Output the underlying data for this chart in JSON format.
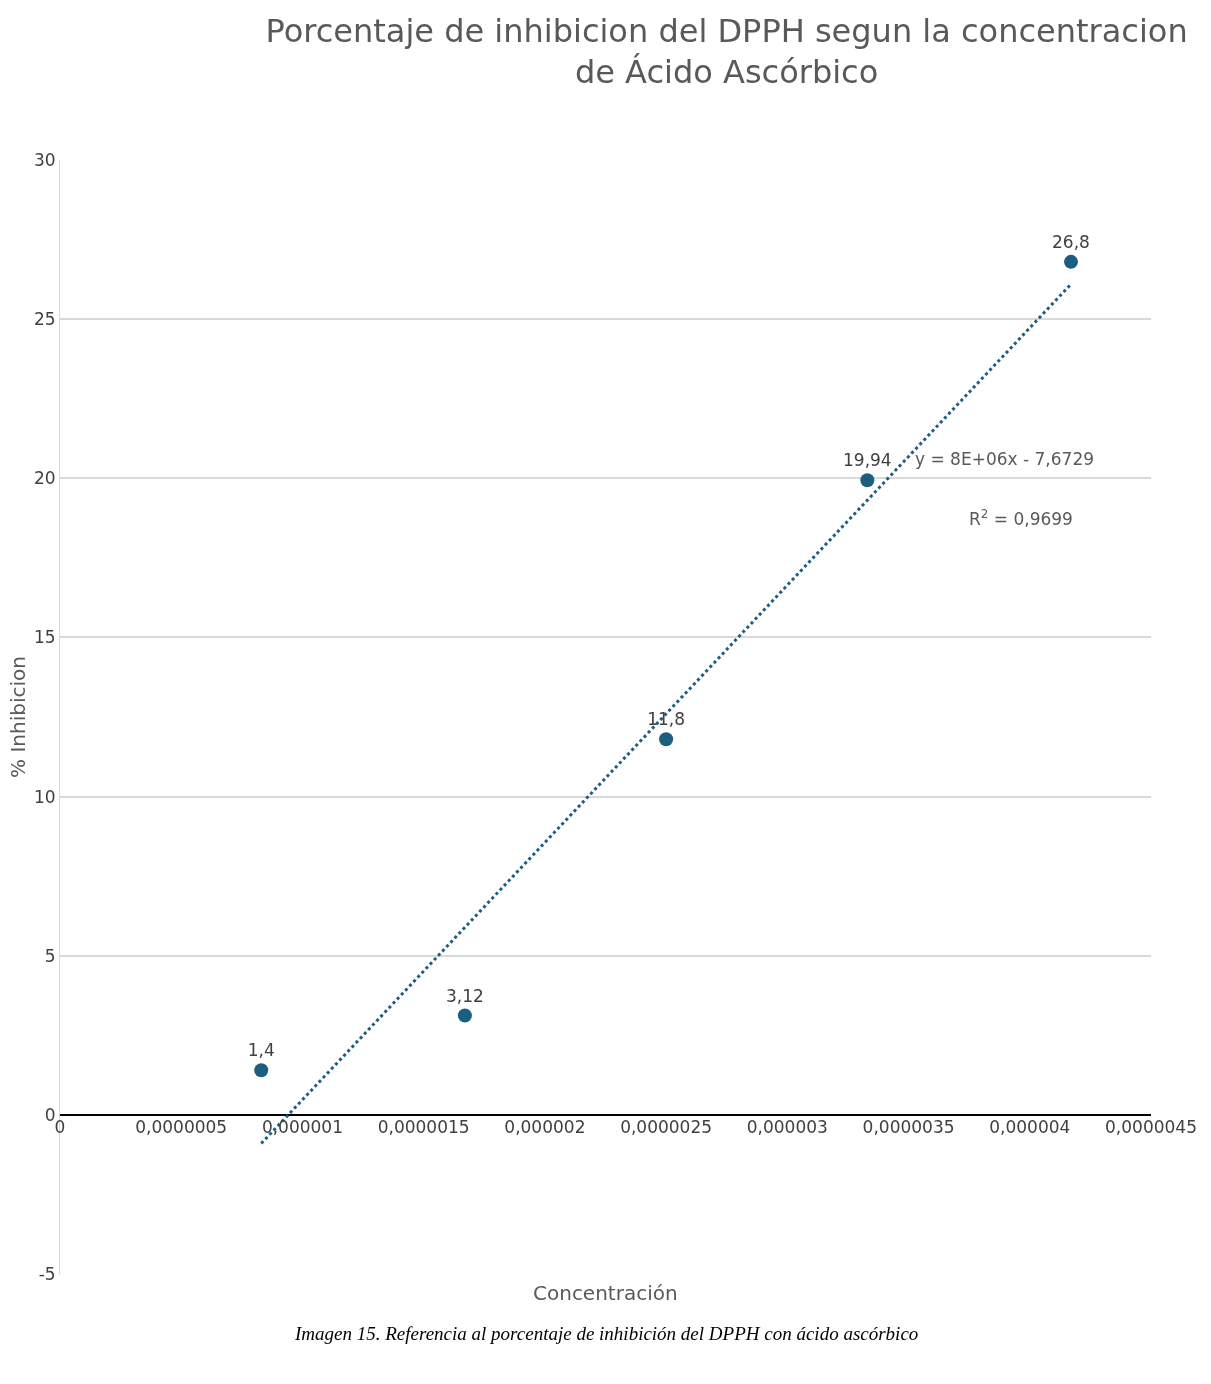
{
  "chart_data": {
    "type": "scatter",
    "title": "Porcentaje de inhibicion del DPPH segun la concentracion de Ácido Ascórbico",
    "xlabel": "Concentración",
    "ylabel": "% Inhibicion",
    "x": [
      8.3e-07,
      1.67e-06,
      2.5e-06,
      3.33e-06,
      4.17e-06
    ],
    "series": [
      {
        "color": "#1b5e80",
        "values": [
          1.4,
          3.12,
          11.8,
          19.94,
          26.8
        ],
        "value_labels": [
          "1,4",
          "3,12",
          "11,8",
          "19,94",
          "26,8"
        ],
        "marker": "circle"
      },
      {
        "type": "line",
        "color": "#1b5e80",
        "x": [
          8.3e-07,
          4.17e-06
        ],
        "values": [
          -0.9,
          26.1
        ],
        "line_style": "dotted",
        "marker": "none"
      }
    ],
    "xlim": [
      0,
      4.5e-06
    ],
    "xticks": [
      0,
      {
        "value": 5e-07,
        "label": "0,0000005"
      },
      {
        "value": 1e-06,
        "label": "0,000001"
      },
      {
        "value": 1.5e-06,
        "label": "0,0000015"
      },
      {
        "value": 2e-06,
        "label": "0,000002"
      },
      {
        "value": 2.5e-06,
        "label": "0,0000025"
      },
      {
        "value": 3e-06,
        "label": "0,000003"
      },
      {
        "value": 3.5e-06,
        "label": "0,0000035"
      },
      {
        "value": 4e-06,
        "label": "0,000004"
      },
      {
        "value": 4.5e-06,
        "label": "0,0000045"
      }
    ],
    "ylim": [
      -5,
      30
    ],
    "yticks": [
      -5,
      0,
      5,
      10,
      15,
      20,
      25,
      30
    ],
    "grid": "y",
    "legend": false,
    "annotations": [
      "y = 8E+06x - 7,6729",
      "R$^{2}$ = 0,9699",
      "Imagen 15. Referencia al porcentaje de inhibición del DPPH con ácido ascórbico"
    ]
  }
}
